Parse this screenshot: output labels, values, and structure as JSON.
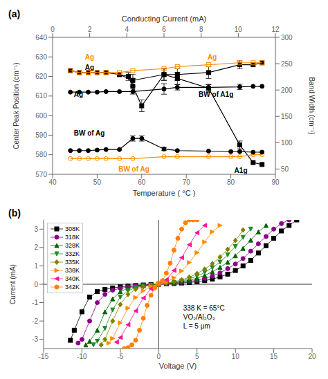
{
  "chart_data": [
    {
      "type": "line",
      "title": "(a)",
      "xlabel": "Temperature ( °C )",
      "ylabel": "Center Peak Position (cm⁻¹)",
      "y2label": "Band Width (cm⁻¹)",
      "x2label": "Conducting Current (mA)",
      "xlim": [
        40,
        90
      ],
      "ylim": [
        570,
        640
      ],
      "y2lim": [
        40,
        300
      ],
      "x2lim": [
        0,
        12
      ],
      "xticks": [
        40,
        50,
        60,
        70,
        80,
        90
      ],
      "yticks": [
        570,
        580,
        590,
        600,
        610,
        620,
        630,
        640
      ],
      "y2ticks": [
        50,
        100,
        150,
        200,
        250,
        300
      ],
      "x2ticks": [
        0,
        2,
        4,
        6,
        8,
        10,
        12
      ],
      "series": [
        {
          "color": "#000000",
          "marker": "square",
          "x": [
            44,
            46,
            48,
            50,
            52,
            55,
            58,
            65,
            68,
            75,
            82,
            85,
            87
          ],
          "values": [
            623,
            622,
            622,
            622,
            622,
            621,
            618,
            621,
            621,
            622,
            626,
            626,
            627
          ],
          "errors": [
            0,
            0,
            0,
            0,
            0,
            0,
            3,
            3,
            3,
            3,
            2,
            0,
            0
          ]
        },
        {
          "color": "#000000",
          "marker": "square",
          "x": [
            55,
            57,
            58,
            60,
            65,
            68,
            75,
            82,
            85,
            87
          ],
          "values": [
            621,
            620,
            615,
            605,
            621,
            619,
            614,
            585,
            576,
            575
          ],
          "errors": [
            0,
            2,
            4,
            3,
            3,
            3,
            2,
            2,
            0,
            0
          ]
        },
        {
          "color": "#FF8C00",
          "marker": "square_open",
          "x": [
            44,
            46,
            48,
            50,
            52,
            55,
            58,
            65,
            68,
            75,
            82,
            85,
            87
          ],
          "values": [
            623,
            622,
            622,
            622,
            622,
            622,
            623,
            624,
            625,
            626,
            627,
            627,
            627
          ]
        },
        {
          "color": "#FF8C00",
          "marker": "circle_open",
          "x": [
            44,
            46,
            48,
            50,
            52,
            55,
            58,
            65,
            68,
            75,
            80,
            82,
            85,
            87
          ],
          "values": [
            578,
            578,
            578,
            578,
            578,
            578,
            578,
            579,
            579,
            579,
            579,
            579,
            580,
            580
          ]
        },
        {
          "color": "#000000",
          "marker": "circle",
          "axis": "y2",
          "x": [
            44,
            46,
            48,
            50,
            52,
            55,
            58,
            65,
            68,
            75,
            82,
            85,
            87
          ],
          "values": [
            196,
            196,
            196,
            196,
            197,
            197,
            197,
            202,
            205,
            205,
            206,
            207,
            207
          ],
          "errors": [
            0,
            0,
            0,
            0,
            0,
            0,
            0,
            10,
            5,
            5,
            5,
            0,
            0
          ]
        },
        {
          "color": "#000000",
          "marker": "circle",
          "axis": "y2",
          "x": [
            44,
            46,
            48,
            50,
            52,
            55,
            58,
            60,
            65,
            68,
            75,
            80,
            82,
            85,
            87
          ],
          "values": [
            85,
            85,
            85,
            86,
            87,
            87,
            108,
            108,
            88,
            85,
            84,
            83,
            83,
            82,
            82
          ],
          "errors": [
            0,
            0,
            0,
            0,
            0,
            0,
            5,
            5,
            3,
            0,
            0,
            0,
            0,
            0,
            0
          ]
        }
      ],
      "annotations": [
        {
          "text": "Ag",
          "x": 46.5,
          "y": 630,
          "color": "#FF8C00"
        },
        {
          "text": "Ag",
          "x": 46.5,
          "y": 624.5,
          "color": "#000000"
        },
        {
          "text": "Ag",
          "x": 74,
          "y": 630,
          "color": "#FF8C00"
        },
        {
          "text": "Ag",
          "x": 44,
          "y": 611,
          "color": "#000000"
        },
        {
          "text": "BW of A1g",
          "x": 72,
          "y": 611,
          "color": "#000000"
        },
        {
          "text": "BW of Ag",
          "x": 44,
          "y": 591,
          "color": "#000000"
        },
        {
          "text": "BW of Ag",
          "x": 54,
          "y": 572.5,
          "color": "#FF8C00"
        },
        {
          "text": "A1g",
          "x": 80,
          "y": 572,
          "color": "#000000"
        }
      ]
    },
    {
      "type": "line",
      "title": "(b)",
      "xlabel": "Voltage (V)",
      "ylabel": "Current (mA)",
      "xlim": [
        -15,
        20
      ],
      "ylim": [
        -3.5,
        3.5
      ],
      "xticks": [
        -15,
        -10,
        -5,
        0,
        5,
        10,
        15,
        20
      ],
      "yticks": [
        -3,
        -2,
        -1,
        0,
        1,
        2,
        3
      ],
      "legend": "upper left",
      "annotations": [
        {
          "text": "338 K = 65°C\nVO₂/Al₂O₃\nL = 5 μm"
        }
      ],
      "series": [
        {
          "name": "308K",
          "color": "#000000",
          "marker": "square",
          "x": [
            -11.5,
            -11,
            -10,
            -9,
            -8,
            -7,
            -6,
            -5,
            -4,
            -3,
            -2,
            -1,
            0,
            1,
            2,
            3,
            4,
            5,
            6,
            7,
            8,
            9,
            10,
            11,
            12,
            13,
            14,
            15,
            16,
            17,
            18
          ],
          "values": [
            -3.05,
            -2.5,
            -1.5,
            -0.7,
            -0.4,
            -0.28,
            -0.2,
            -0.14,
            -0.1,
            -0.07,
            -0.04,
            -0.02,
            0,
            0.02,
            0.04,
            0.07,
            0.1,
            0.14,
            0.2,
            0.28,
            0.4,
            0.55,
            0.75,
            1.0,
            1.3,
            1.7,
            2.1,
            2.5,
            2.9,
            3.2,
            3.5
          ]
        },
        {
          "name": "318K",
          "color": "#8B008B",
          "marker": "circle",
          "x": [
            -10.5,
            -10,
            -9,
            -8,
            -7,
            -6,
            -5,
            -4,
            -3,
            -2,
            -1,
            0,
            1,
            2,
            3,
            4,
            5,
            6,
            7,
            8,
            9,
            10,
            11,
            12,
            13,
            14,
            15,
            16,
            17
          ],
          "values": [
            -3.2,
            -3.0,
            -2.0,
            -1.0,
            -0.55,
            -0.32,
            -0.22,
            -0.15,
            -0.1,
            -0.06,
            -0.03,
            0,
            0.03,
            0.06,
            0.1,
            0.15,
            0.22,
            0.32,
            0.45,
            0.62,
            0.85,
            1.1,
            1.4,
            1.8,
            2.2,
            2.6,
            3.0,
            3.3,
            3.5
          ]
        },
        {
          "name": "328K",
          "color": "#006400",
          "marker": "triangle_up",
          "x": [
            -9.5,
            -9,
            -8,
            -7,
            -6,
            -5,
            -4,
            -3,
            -2,
            -1,
            0,
            1,
            2,
            3,
            4,
            5,
            6,
            7,
            8,
            9,
            10,
            11,
            12,
            13,
            14
          ],
          "values": [
            -3.3,
            -3.1,
            -2.5,
            -1.5,
            -0.8,
            -0.4,
            -0.22,
            -0.14,
            -0.08,
            -0.04,
            0,
            0.04,
            0.08,
            0.14,
            0.22,
            0.33,
            0.48,
            0.68,
            0.92,
            1.2,
            1.55,
            1.95,
            2.4,
            2.85,
            3.2
          ]
        },
        {
          "name": "332K",
          "color": "#228B22",
          "marker": "triangle_down",
          "x": [
            -8.5,
            -8,
            -7,
            -6,
            -5,
            -4,
            -3,
            -2,
            -1,
            0,
            1,
            2,
            3,
            4,
            5,
            6,
            7,
            8,
            9,
            10,
            11,
            12
          ],
          "values": [
            -3.3,
            -3.1,
            -2.4,
            -1.4,
            -0.7,
            -0.35,
            -0.18,
            -0.1,
            -0.05,
            0,
            0.05,
            0.1,
            0.18,
            0.29,
            0.44,
            0.65,
            0.9,
            1.2,
            1.6,
            2.05,
            2.55,
            3.0
          ]
        },
        {
          "name": "335K",
          "color": "#808000",
          "marker": "diamond",
          "x": [
            -7.5,
            -7,
            -6,
            -5,
            -4,
            -3,
            -2,
            -1,
            0,
            1,
            2,
            3,
            4,
            5,
            6,
            7,
            8,
            9,
            10,
            11
          ],
          "values": [
            -3.3,
            -3.0,
            -2.0,
            -1.1,
            -0.55,
            -0.27,
            -0.13,
            -0.06,
            0,
            0.06,
            0.13,
            0.24,
            0.38,
            0.58,
            0.82,
            1.12,
            1.48,
            1.9,
            2.38,
            2.95
          ]
        },
        {
          "name": "338K",
          "color": "#FF8C00",
          "marker": "triangle_right",
          "x": [
            -6.5,
            -6,
            -5,
            -4,
            -3,
            -2,
            -1,
            0,
            1,
            2,
            3,
            4,
            5,
            6,
            7,
            8
          ],
          "values": [
            -3.2,
            -2.95,
            -2.1,
            -1.3,
            -0.72,
            -0.35,
            -0.12,
            0,
            0.12,
            0.35,
            0.72,
            1.18,
            1.72,
            2.3,
            2.85,
            3.2
          ]
        },
        {
          "name": "340K",
          "color": "#FF1493",
          "marker": "triangle_left",
          "x": [
            -5.5,
            -5,
            -4,
            -3,
            -2,
            -1,
            0,
            1,
            2,
            3,
            4,
            5,
            6
          ],
          "values": [
            -3.15,
            -2.9,
            -2.2,
            -1.45,
            -0.75,
            -0.25,
            0,
            0.25,
            0.75,
            1.45,
            2.15,
            2.8,
            3.2
          ]
        },
        {
          "name": "342K",
          "color": "#FF8000",
          "marker": "circle",
          "x": [
            -4.5,
            -4,
            -3.5,
            -3,
            -2.5,
            -2,
            -1.5,
            -1,
            -0.5,
            0,
            0.5,
            1,
            1.5,
            2,
            2.5,
            3,
            3.5,
            4,
            4.5,
            5
          ],
          "values": [
            -3.5,
            -3.45,
            -3.3,
            -3.05,
            -2.5,
            -1.85,
            -1.15,
            -0.6,
            -0.2,
            0,
            0.2,
            0.6,
            1.15,
            1.85,
            2.5,
            3.0,
            3.35,
            3.5,
            3.5,
            3.5
          ]
        }
      ]
    }
  ]
}
